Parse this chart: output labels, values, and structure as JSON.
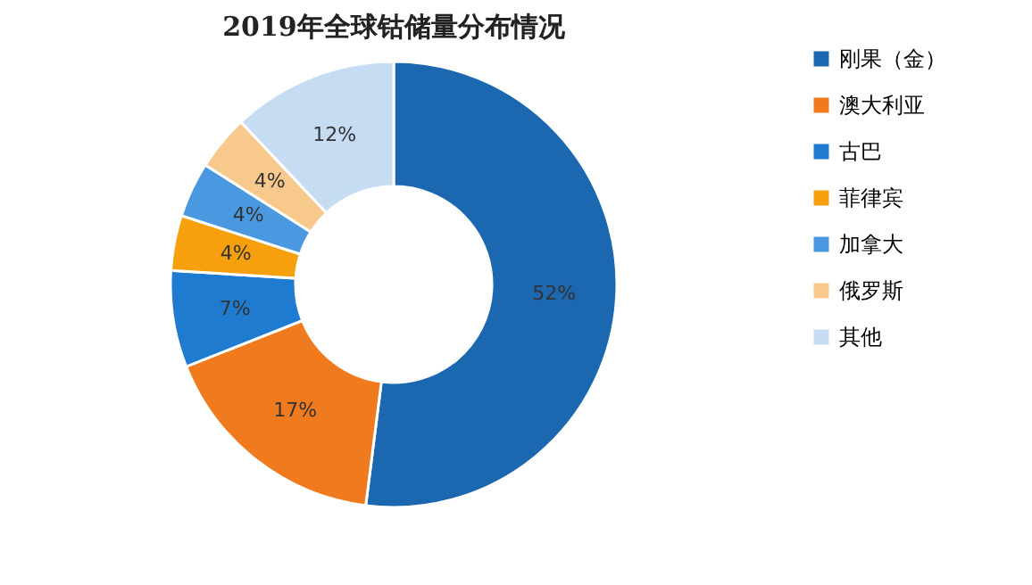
{
  "chart_data": {
    "type": "donut",
    "title": "2019年全球钴储量分布情况",
    "categories": [
      "刚果（金）",
      "澳大利亚",
      "古巴",
      "菲律宾",
      "加拿大",
      "俄罗斯",
      "其他"
    ],
    "values": [
      52,
      17,
      7,
      4,
      4,
      4,
      12
    ],
    "colors": [
      "#1c68b0",
      "#f07b1f",
      "#1f7bd0",
      "#f5a00c",
      "#4a99e0",
      "#f8c98c",
      "#c6dcf3"
    ],
    "value_labels": [
      "52%",
      "17%",
      "7%",
      "4%",
      "4%",
      "4%",
      "12%"
    ],
    "legend": "right"
  }
}
